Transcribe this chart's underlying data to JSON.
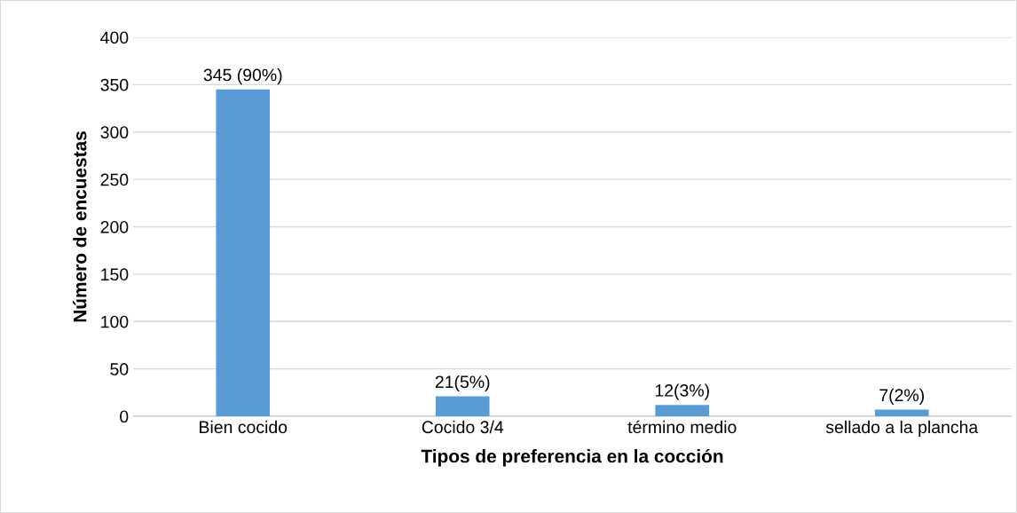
{
  "chart_data": {
    "type": "bar",
    "xlabel": "Tipos de preferencia en la cocción",
    "ylabel": "Número de encuestas",
    "categories": [
      "Bien cocido",
      "Cocido 3/4",
      "término medio",
      "sellado a la plancha"
    ],
    "values": [
      345,
      21,
      12,
      7
    ],
    "color": "#5b9bd5",
    "value_labels": [
      "345 (90%)",
      "21(5%)",
      "12(3%)",
      "7(2%)"
    ],
    "ylim": [
      0,
      400
    ],
    "yticks": [
      0,
      50,
      100,
      150,
      200,
      250,
      300,
      350,
      400
    ],
    "grid": "y",
    "legend": false
  }
}
